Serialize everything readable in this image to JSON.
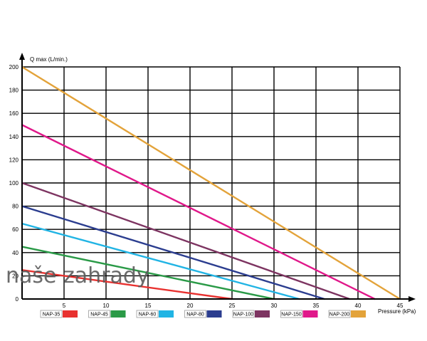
{
  "chart_data": {
    "type": "line",
    "title": "",
    "ylabel": "Q max (L/min.)",
    "xlabel": "Pressure (kPa)",
    "xlim": [
      0,
      45
    ],
    "ylim": [
      0,
      200
    ],
    "x_ticks": [
      0,
      5,
      10,
      15,
      20,
      25,
      30,
      35,
      40,
      45
    ],
    "y_ticks": [
      0,
      20,
      40,
      60,
      80,
      100,
      120,
      140,
      160,
      180,
      200
    ],
    "grid": true,
    "legend_position": "bottom",
    "series": [
      {
        "name": "NAP-35",
        "color": "#e8312f",
        "x": [
          0,
          25
        ],
        "y": [
          25,
          0
        ]
      },
      {
        "name": "NAP-45",
        "color": "#2a9a47",
        "x": [
          0,
          30
        ],
        "y": [
          45,
          0
        ]
      },
      {
        "name": "NAP-60",
        "color": "#21b4e4",
        "x": [
          0,
          33
        ],
        "y": [
          65,
          0
        ]
      },
      {
        "name": "NAP-80",
        "color": "#2b3d8f",
        "x": [
          0,
          36
        ],
        "y": [
          80,
          0
        ]
      },
      {
        "name": "NAP-100",
        "color": "#7d3461",
        "x": [
          0,
          39
        ],
        "y": [
          100,
          0
        ]
      },
      {
        "name": "NAP-150",
        "color": "#e0188a",
        "x": [
          0,
          42
        ],
        "y": [
          150,
          0
        ]
      },
      {
        "name": "NAP-200",
        "color": "#e3a33a",
        "x": [
          0,
          45
        ],
        "y": [
          200,
          0
        ]
      }
    ]
  },
  "watermark": "naše zahrady"
}
